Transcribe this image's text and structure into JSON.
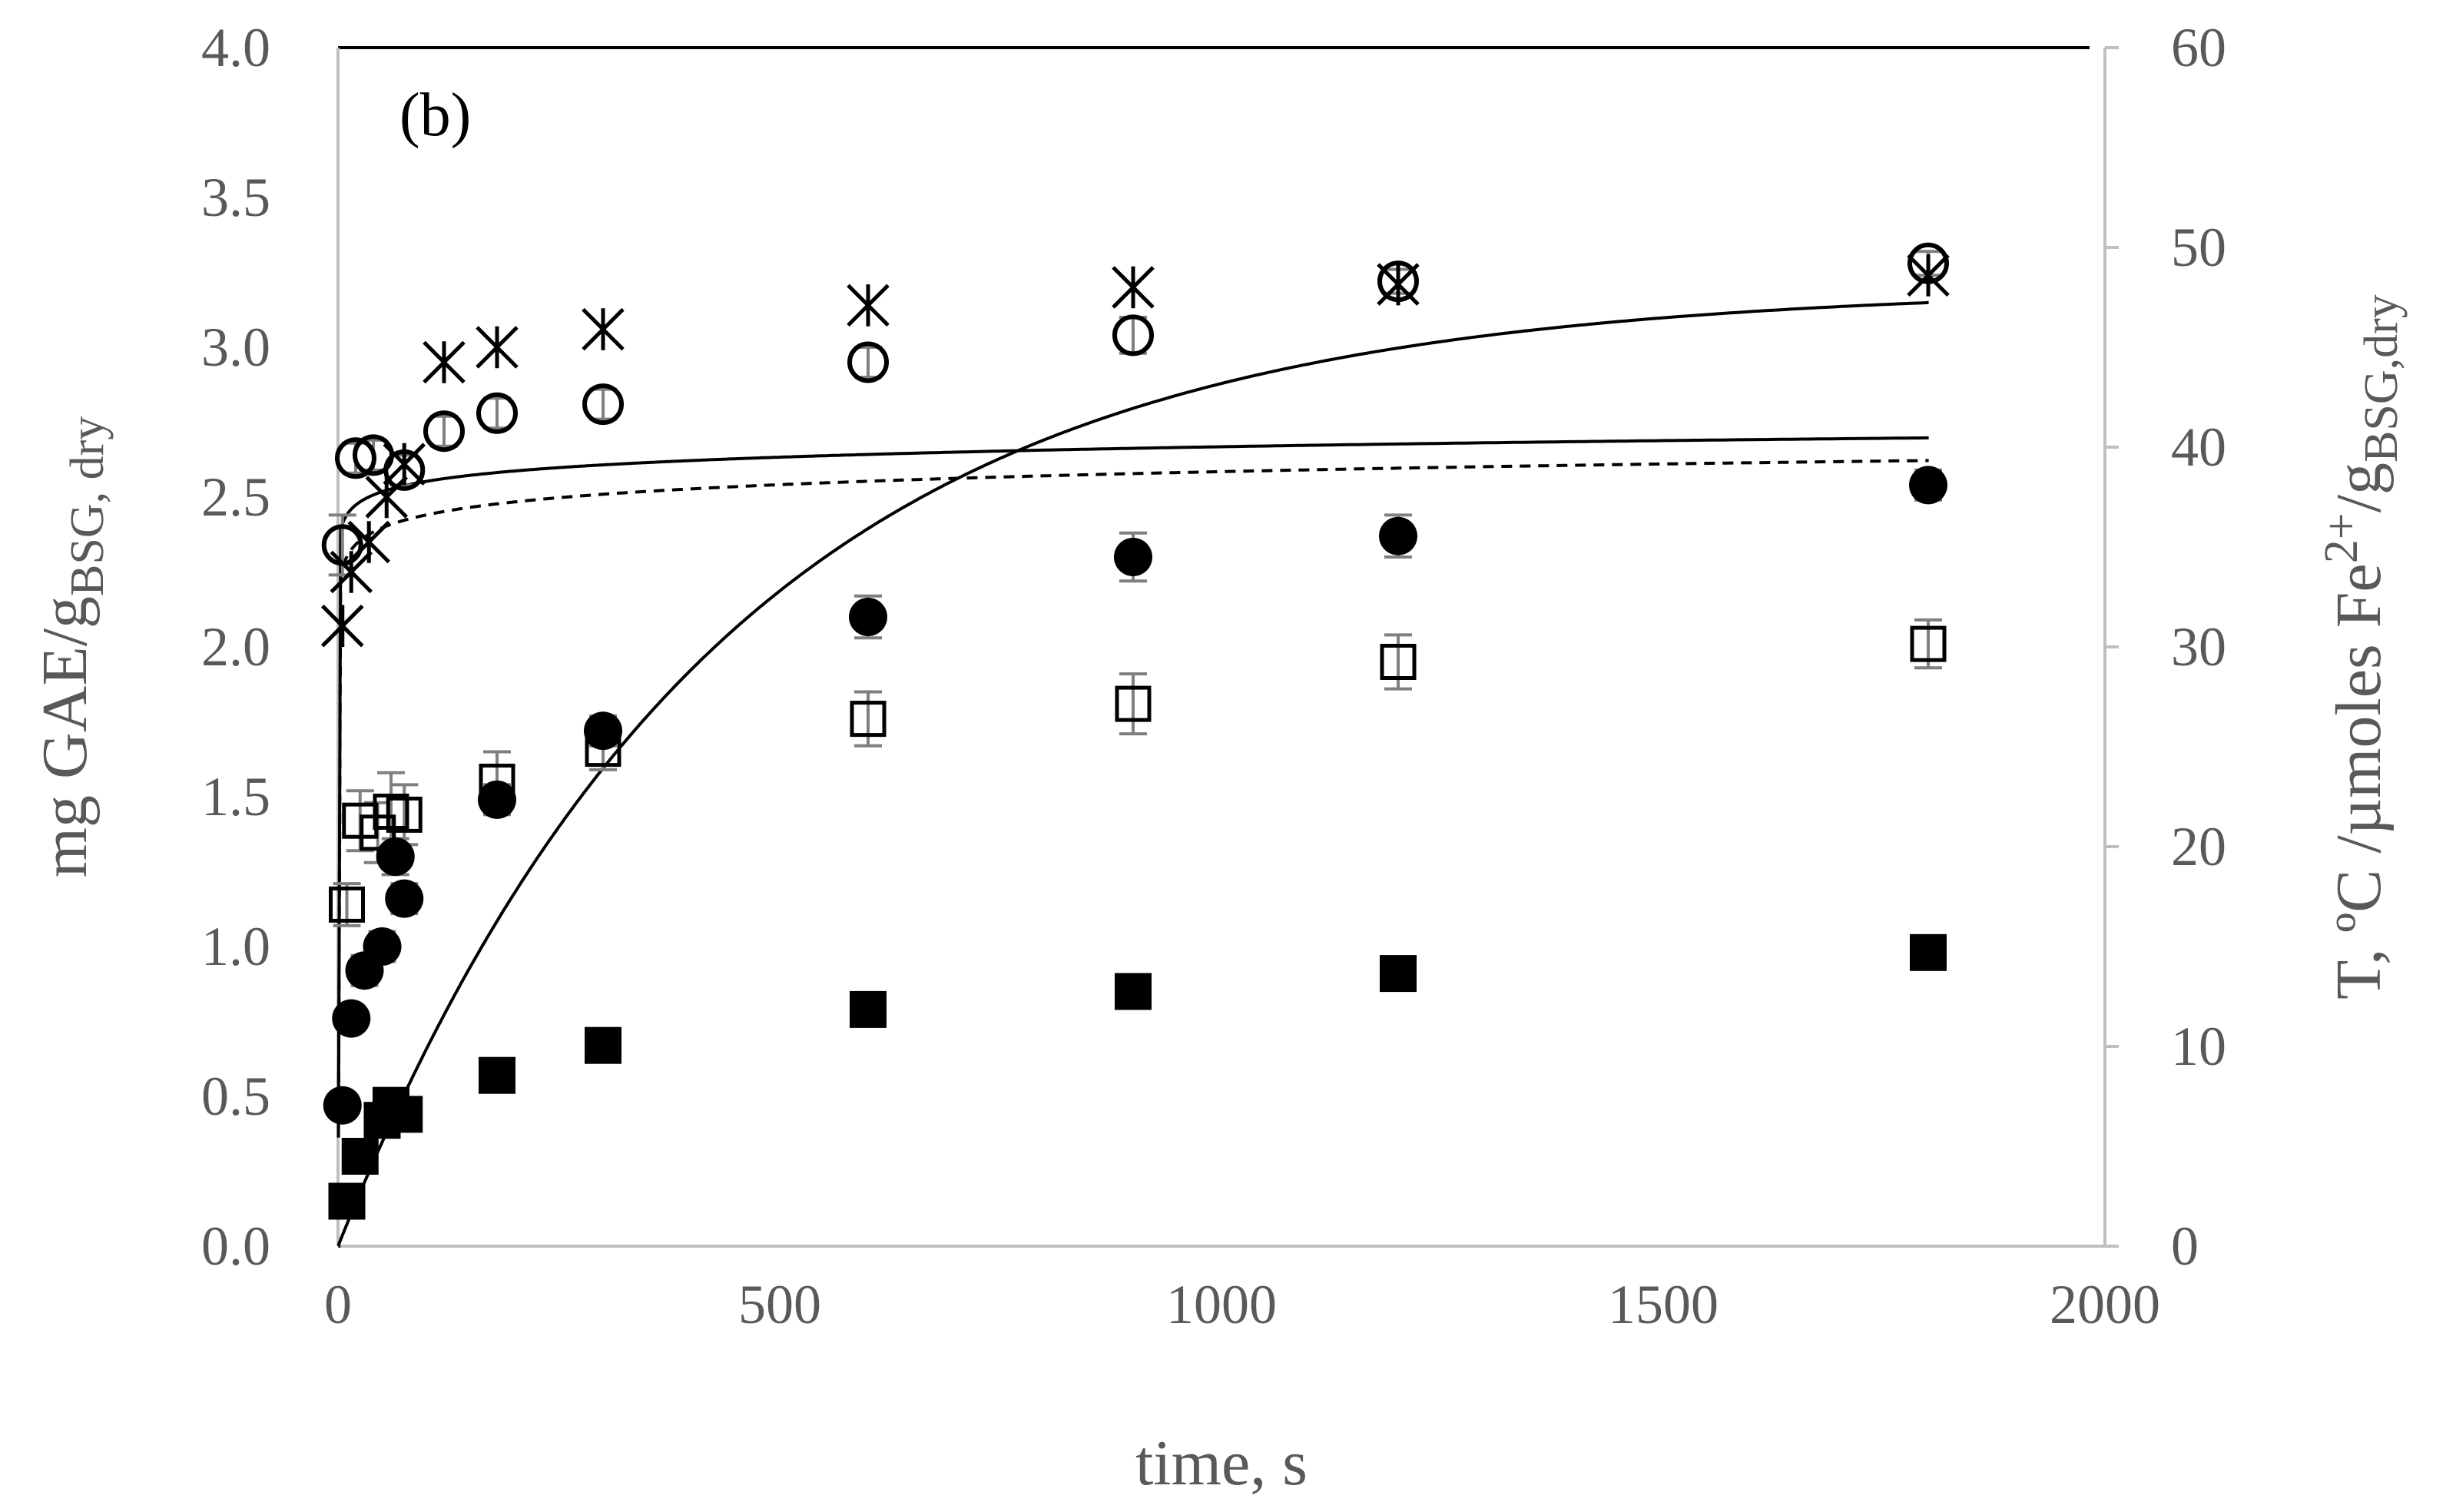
{
  "chart_data": {
    "type": "scatter",
    "panel_label": "(b)",
    "xlabel": "time, s",
    "ylabel_left": {
      "main": "mg GAE/g",
      "sub": "BSG, dry"
    },
    "ylabel_right": {
      "main": "T, ºC /µmoles Fe",
      "sup": "2+",
      "mid": "/g",
      "sub": "BSG,dry"
    },
    "xlim": [
      0,
      2000
    ],
    "ylim_left": [
      0,
      4
    ],
    "ylim_right": [
      0,
      60
    ],
    "x_ticks": [
      "0",
      "500",
      "1000",
      "1500",
      "2000"
    ],
    "y_left_ticks": [
      "0.0",
      "0.5",
      "1.0",
      "1.5",
      "2.0",
      "2.5",
      "3.0",
      "3.5",
      "4.0"
    ],
    "y_right_ticks": [
      "0",
      "10",
      "20",
      "30",
      "40",
      "50",
      "60"
    ],
    "series": [
      {
        "name": "open circles",
        "marker": "open-circle",
        "axis": "left",
        "x": [
          5,
          20,
          40,
          75,
          120,
          180,
          300,
          600,
          900,
          1200,
          1800
        ],
        "y": [
          2.34,
          2.63,
          2.64,
          2.59,
          2.72,
          2.78,
          2.81,
          2.95,
          3.04,
          3.22,
          3.28
        ],
        "err": [
          0.1,
          0.05,
          0.05,
          0.05,
          0.05,
          0.05,
          0.05,
          0.05,
          0.06,
          0.04,
          0.04
        ]
      },
      {
        "name": "stars",
        "marker": "star",
        "axis": "left",
        "x": [
          5,
          15,
          35,
          55,
          75,
          120,
          180,
          300,
          600,
          900,
          1200,
          1800
        ],
        "y": [
          2.07,
          2.25,
          2.35,
          2.5,
          2.61,
          2.95,
          3.0,
          3.06,
          3.14,
          3.2,
          3.21,
          3.24
        ],
        "err": []
      },
      {
        "name": "filled circles",
        "marker": "filled-circle",
        "axis": "left",
        "x": [
          5,
          15,
          30,
          50,
          65,
          75,
          180,
          300,
          600,
          900,
          1200,
          1800
        ],
        "y": [
          0.47,
          0.76,
          0.92,
          1.0,
          1.3,
          1.16,
          1.49,
          1.72,
          2.1,
          2.3,
          2.37,
          2.54
        ],
        "err": [
          0.02,
          0.03,
          0.05,
          0.05,
          0.06,
          0.05,
          0.05,
          0.05,
          0.07,
          0.08,
          0.07,
          0.05
        ]
      },
      {
        "name": "open squares",
        "marker": "open-square",
        "axis": "left",
        "x": [
          10,
          25,
          45,
          60,
          75,
          180,
          300,
          600,
          900,
          1200,
          1800
        ],
        "y": [
          1.14,
          1.42,
          1.38,
          1.45,
          1.44,
          1.55,
          1.66,
          1.76,
          1.81,
          1.95,
          2.01
        ],
        "err": [
          0.07,
          0.1,
          0.1,
          0.13,
          0.1,
          0.1,
          0.07,
          0.09,
          0.1,
          0.09,
          0.08
        ]
      },
      {
        "name": "filled squares",
        "marker": "filled-square",
        "axis": "left",
        "x": [
          10,
          25,
          50,
          60,
          75,
          180,
          300,
          600,
          900,
          1200,
          1800
        ],
        "y": [
          0.15,
          0.3,
          0.42,
          0.47,
          0.44,
          0.57,
          0.67,
          0.79,
          0.85,
          0.91,
          0.98
        ],
        "err": []
      }
    ],
    "fits": [
      {
        "name": "fit open circles",
        "style": "solid",
        "axis": "left",
        "a": 2.32,
        "b": 0.116
      },
      {
        "name": "fit stars",
        "style": "dashed",
        "axis": "left",
        "a": 2.15,
        "b": 0.145
      },
      {
        "name": "fit filled circles",
        "style": "solid",
        "axis": "left",
        "model": "saturation",
        "ymax": 3.2,
        "k": 0.0023
      }
    ]
  }
}
